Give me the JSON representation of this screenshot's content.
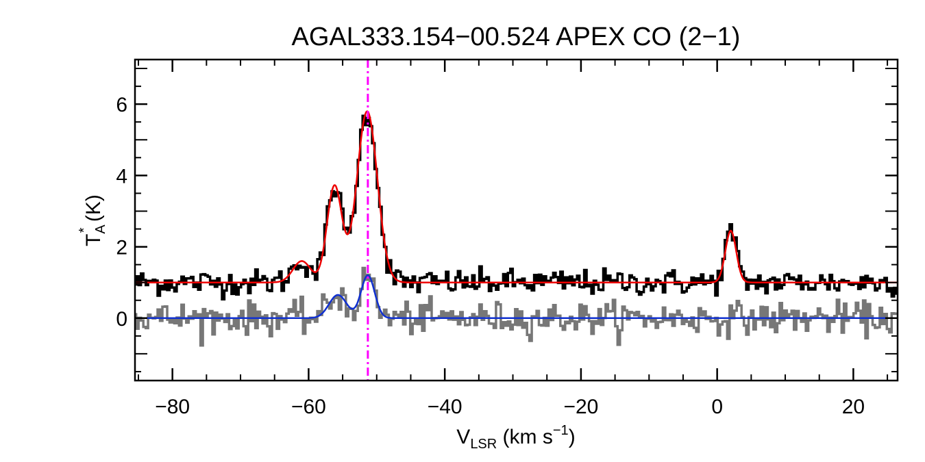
{
  "chart_data": {
    "type": "line",
    "title": "AGAL333.154−00.524  APEX CO (2−1)",
    "xlabel": {
      "main": "V",
      "sub": "LSR",
      "rest": " (km s",
      "sup": "−1",
      "close": ")"
    },
    "ylabel": {
      "main": "T",
      "sub": "A",
      "sup": "*",
      "rest": " (K)"
    },
    "xlim": [
      -85.5,
      26.5
    ],
    "ylim": [
      -1.75,
      7.25
    ],
    "x_ticks": [
      -80,
      -60,
      -40,
      -20,
      0,
      20
    ],
    "x_tick_labels": [
      "−80",
      "−60",
      "−40",
      "−20",
      "0",
      "20"
    ],
    "y_ticks": [
      0,
      2,
      4,
      6
    ],
    "y_tick_labels": [
      "0",
      "2",
      "4",
      "6"
    ],
    "marker_velocity": -51.3,
    "channel_width": 0.35,
    "series": [
      {
        "name": "observed spectrum",
        "style": "histogram",
        "color": "#000000",
        "offset": 1.0,
        "noise_rms": 0.18,
        "components": [
          {
            "amp": 0.6,
            "center": -61.0,
            "sigma": 1.3
          },
          {
            "amp": 2.7,
            "center": -56.2,
            "sigma": 1.1
          },
          {
            "amp": 4.8,
            "center": -51.4,
            "sigma": 1.5
          },
          {
            "amp": 1.45,
            "center": 2.0,
            "sigma": 0.8
          }
        ]
      },
      {
        "name": "residual spectrum",
        "style": "histogram",
        "color": "#777777",
        "offset": 0.0,
        "noise_rms": 0.22,
        "components": [
          {
            "amp": 0.65,
            "center": -55.7,
            "sigma": 1.3
          },
          {
            "amp": 1.2,
            "center": -51.3,
            "sigma": 1.0
          }
        ]
      },
      {
        "name": "fit (red)",
        "style": "line",
        "color": "#ee0000",
        "offset": 1.0,
        "components": [
          {
            "amp": 0.6,
            "center": -61.0,
            "sigma": 1.3
          },
          {
            "amp": 2.7,
            "center": -56.2,
            "sigma": 1.1
          },
          {
            "amp": 4.8,
            "center": -51.4,
            "sigma": 1.5
          },
          {
            "amp": 1.45,
            "center": 2.0,
            "sigma": 0.8
          }
        ]
      },
      {
        "name": "fit (blue)",
        "style": "line",
        "color": "#1030d0",
        "offset": 0.0,
        "components": [
          {
            "amp": 0.65,
            "center": -55.7,
            "sigma": 1.3
          },
          {
            "amp": 1.2,
            "center": -51.3,
            "sigma": 1.0
          }
        ]
      }
    ],
    "marker_color": "#ff00ff"
  }
}
